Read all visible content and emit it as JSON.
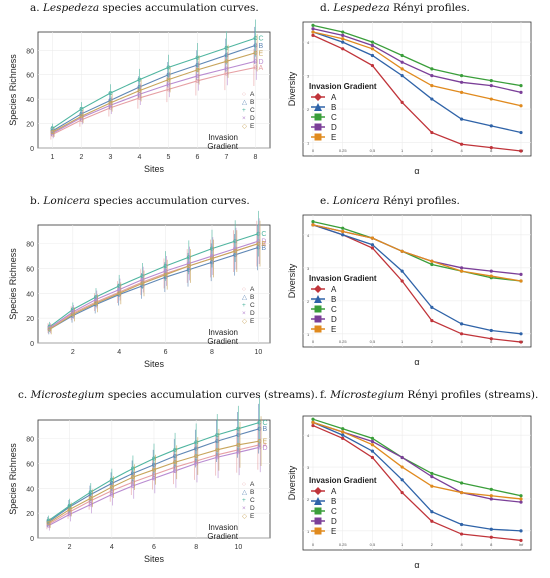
{
  "colors": {
    "A": "#c0343a",
    "B": "#2f63a8",
    "C": "#3a9e3a",
    "D": "#7b3f98",
    "E": "#e08a1e",
    "acc_A": "#e6a0a4",
    "acc_B": "#5f87b5",
    "acc_C": "#4fb5a0",
    "acc_D": "#b98bd1",
    "acc_E": "#c8a55c"
  },
  "chart_data": [
    {
      "id": "a",
      "type": "line",
      "title_prefix": "a.",
      "title_italic": "Lespedeza",
      "title_rest": "species accumulation curves.",
      "ylabel": "Species Richness",
      "xlabel": "Sites",
      "x": [
        1,
        2,
        3,
        4,
        5,
        6,
        7,
        8
      ],
      "xticks": [
        "1",
        "2",
        "3",
        "4",
        "5",
        "6",
        "7",
        "8"
      ],
      "yticks": [
        "0",
        "20",
        "40",
        "60",
        "80"
      ],
      "ylim": [
        0,
        95
      ],
      "legend_title": "Invasion Gradient",
      "legend_entries": [
        "A",
        "B",
        "C",
        "D",
        "E"
      ],
      "series": [
        {
          "name": "A",
          "values": [
            11,
            23,
            33,
            41,
            48,
            55,
            61,
            66
          ]
        },
        {
          "name": "B",
          "values": [
            14,
            28,
            39,
            50,
            60,
            68,
            76,
            84
          ]
        },
        {
          "name": "C",
          "values": [
            16,
            32,
            45,
            56,
            66,
            74,
            82,
            90
          ]
        },
        {
          "name": "D",
          "values": [
            12,
            25,
            35,
            44,
            52,
            59,
            65,
            71
          ]
        },
        {
          "name": "E",
          "values": [
            13,
            26,
            37,
            47,
            56,
            64,
            71,
            78
          ]
        }
      ]
    },
    {
      "id": "b",
      "type": "line",
      "title_prefix": "b.",
      "title_italic": "Lonicera",
      "title_rest": "species accumulation curves.",
      "ylabel": "Species Richness",
      "xlabel": "Sites",
      "x": [
        1,
        2,
        3,
        4,
        5,
        6,
        7,
        8,
        9,
        10
      ],
      "xticks": [
        "2",
        "4",
        "6",
        "8",
        "10"
      ],
      "yticks": [
        "0",
        "20",
        "40",
        "60",
        "80"
      ],
      "ylim": [
        0,
        95
      ],
      "legend_title": "Invasion Gradient",
      "legend_entries": [
        "A",
        "B",
        "C",
        "D",
        "E"
      ],
      "series": [
        {
          "name": "A",
          "values": [
            12,
            24,
            33,
            41,
            49,
            56,
            62,
            68,
            74,
            80
          ]
        },
        {
          "name": "B",
          "values": [
            11,
            22,
            31,
            39,
            46,
            53,
            59,
            65,
            71,
            77
          ]
        },
        {
          "name": "C",
          "values": [
            13,
            27,
            37,
            46,
            54,
            62,
            69,
            76,
            82,
            88
          ]
        },
        {
          "name": "D",
          "values": [
            12,
            25,
            35,
            43,
            51,
            58,
            64,
            70,
            76,
            82
          ]
        },
        {
          "name": "E",
          "values": [
            11,
            23,
            32,
            40,
            48,
            55,
            62,
            68,
            74,
            80
          ]
        }
      ]
    },
    {
      "id": "c",
      "type": "line",
      "title_prefix": "c.",
      "title_italic": "Microstegium",
      "title_rest": "species accumulation curves (streams).",
      "ylabel": "Species Richness",
      "xlabel": "Sites",
      "x": [
        1,
        2,
        3,
        4,
        5,
        6,
        7,
        8,
        9,
        10,
        11
      ],
      "xticks": [
        "2",
        "4",
        "6",
        "8",
        "10"
      ],
      "yticks": [
        "0",
        "20",
        "40",
        "60",
        "80"
      ],
      "ylim": [
        0,
        95
      ],
      "legend_title": "Invasion Gradient",
      "legend_entries": [
        "A",
        "B",
        "C",
        "D",
        "E"
      ],
      "series": [
        {
          "name": "A",
          "values": [
            11,
            21,
            30,
            38,
            45,
            51,
            57,
            62,
            67,
            71,
            75
          ]
        },
        {
          "name": "B",
          "values": [
            13,
            25,
            35,
            44,
            52,
            59,
            66,
            72,
            78,
            83,
            88
          ]
        },
        {
          "name": "C",
          "values": [
            14,
            26,
            37,
            47,
            56,
            64,
            71,
            77,
            83,
            88,
            93
          ]
        },
        {
          "name": "D",
          "values": [
            10,
            19,
            27,
            35,
            42,
            48,
            54,
            60,
            65,
            69,
            73
          ]
        },
        {
          "name": "E",
          "values": [
            12,
            23,
            32,
            41,
            49,
            55,
            61,
            66,
            71,
            75,
            78
          ]
        }
      ]
    },
    {
      "id": "d",
      "type": "line",
      "title_prefix": "d.",
      "title_italic": "Lespedeza",
      "title_rest": "Rényi profiles.",
      "ylabel": "Diversity",
      "xlabel": "α",
      "xticks": [
        "0",
        "0.25",
        "0.5",
        "1",
        "2",
        "4",
        "8",
        "Inf"
      ],
      "yticks": [
        "1",
        "2",
        "3",
        "4"
      ],
      "ylim": [
        0.6,
        4.6
      ],
      "legend_title": "Invasion Gradient",
      "legend_entries": [
        "A",
        "B",
        "C",
        "D",
        "E"
      ],
      "series": [
        {
          "name": "A",
          "values": [
            4.2,
            3.8,
            3.3,
            2.2,
            1.3,
            0.95,
            0.85,
            0.75
          ]
        },
        {
          "name": "B",
          "values": [
            4.3,
            4.0,
            3.6,
            3.0,
            2.3,
            1.7,
            1.5,
            1.3
          ]
        },
        {
          "name": "C",
          "values": [
            4.5,
            4.3,
            4.0,
            3.6,
            3.2,
            3.0,
            2.85,
            2.7
          ]
        },
        {
          "name": "D",
          "values": [
            4.4,
            4.2,
            3.9,
            3.4,
            3.0,
            2.8,
            2.7,
            2.5
          ]
        },
        {
          "name": "E",
          "values": [
            4.3,
            4.1,
            3.8,
            3.2,
            2.7,
            2.5,
            2.3,
            2.1
          ]
        }
      ]
    },
    {
      "id": "e",
      "type": "line",
      "title_prefix": "e.",
      "title_italic": "Lonicera",
      "title_rest": "Rényi profiles.",
      "ylabel": "Diversity",
      "xlabel": "α",
      "xticks": [
        "0",
        "0.25",
        "0.5",
        "1",
        "2",
        "4",
        "8",
        "Inf"
      ],
      "yticks": [
        "1",
        "2",
        "3",
        "4"
      ],
      "ylim": [
        0.6,
        4.6
      ],
      "legend_title": "Invasion Gradient",
      "legend_entries": [
        "A",
        "B",
        "C",
        "D",
        "E"
      ],
      "series": [
        {
          "name": "A",
          "values": [
            4.3,
            4.0,
            3.6,
            2.6,
            1.4,
            1.0,
            0.85,
            0.75
          ]
        },
        {
          "name": "B",
          "values": [
            4.3,
            4.0,
            3.7,
            2.9,
            1.8,
            1.3,
            1.1,
            1.0
          ]
        },
        {
          "name": "C",
          "values": [
            4.4,
            4.2,
            3.9,
            3.5,
            3.1,
            2.9,
            2.7,
            2.6
          ]
        },
        {
          "name": "D",
          "values": [
            4.3,
            4.1,
            3.9,
            3.5,
            3.2,
            3.0,
            2.9,
            2.8
          ]
        },
        {
          "name": "E",
          "values": [
            4.3,
            4.1,
            3.9,
            3.5,
            3.2,
            2.9,
            2.75,
            2.6
          ]
        }
      ]
    },
    {
      "id": "f",
      "type": "line",
      "title_prefix": "f.",
      "title_italic": "Microstegium",
      "title_rest": "Rényi profiles (streams).",
      "ylabel": "Diversity",
      "xlabel": "α",
      "xticks": [
        "0",
        "0.25",
        "0.5",
        "1",
        "2",
        "4",
        "8",
        "Inf"
      ],
      "yticks": [
        "1",
        "2",
        "3",
        "4"
      ],
      "ylim": [
        0.4,
        4.6
      ],
      "legend_title": "Invasion Gradient",
      "legend_entries": [
        "A",
        "B",
        "C",
        "D",
        "E"
      ],
      "series": [
        {
          "name": "A",
          "values": [
            4.3,
            3.9,
            3.3,
            2.2,
            1.3,
            0.9,
            0.8,
            0.7
          ]
        },
        {
          "name": "B",
          "values": [
            4.4,
            4.0,
            3.5,
            2.6,
            1.6,
            1.2,
            1.05,
            1.0
          ]
        },
        {
          "name": "C",
          "values": [
            4.5,
            4.2,
            3.9,
            3.3,
            2.8,
            2.5,
            2.3,
            2.1
          ]
        },
        {
          "name": "D",
          "values": [
            4.4,
            4.1,
            3.8,
            3.3,
            2.7,
            2.2,
            2.0,
            1.9
          ]
        },
        {
          "name": "E",
          "values": [
            4.4,
            4.1,
            3.7,
            3.0,
            2.4,
            2.2,
            2.1,
            2.0
          ]
        }
      ]
    }
  ]
}
